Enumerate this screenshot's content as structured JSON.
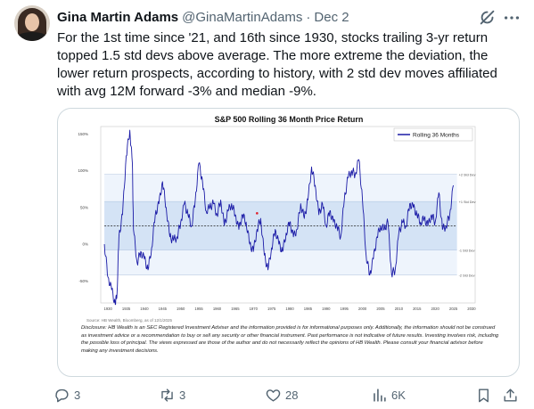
{
  "author": {
    "name": "Gina Martin Adams",
    "handle": "@GinaMartinAdams",
    "separator": "·",
    "date": "Dec 2"
  },
  "tweet_text": "For the 1st time since '21, and 16th since 1930, stocks trailing 3-yr return topped 1.5 std devs above average. The more extreme the deviation, the lower return prospects, according to history, with 2 std dev moves affiliated with avg 12M forward -3% and median -9%.",
  "media": {
    "chart_data": {
      "type": "line",
      "title": "S&P 500 Rolling 36 Month Price Return",
      "legend": [
        "Rolling 36 Months"
      ],
      "legend_position": "top-right",
      "y_ticks": [
        "150%",
        "100%",
        "50%",
        "0%",
        "-50%"
      ],
      "x_ticks": [
        "1930",
        "1935",
        "1940",
        "1945",
        "1950",
        "1955",
        "1960",
        "1965",
        "1970",
        "1975",
        "1980",
        "1985",
        "1990",
        "1995",
        "2000",
        "2005",
        "2010",
        "2015",
        "2020",
        "2025",
        "2030"
      ],
      "ylim": [
        -80,
        160
      ],
      "xlim": [
        1928,
        2031
      ],
      "band_labels": [
        "+2 Std Dev",
        "+1 Std Dev",
        "-1 Std Dev",
        "-2 Std Dev"
      ],
      "bands": {
        "plus2": 95,
        "plus1": 58,
        "mean": 25,
        "minus1": -8,
        "minus2": -42
      },
      "series": [
        {
          "name": "Rolling 36 Months",
          "x": [
            1929,
            1930,
            1931,
            1932,
            1932.5,
            1933,
            1934,
            1935,
            1936,
            1936.7,
            1937,
            1938,
            1939,
            1940,
            1941,
            1942,
            1943,
            1944,
            1945,
            1946,
            1947,
            1948,
            1949,
            1950,
            1951,
            1952,
            1953,
            1954,
            1955,
            1956,
            1957,
            1958,
            1959,
            1960,
            1961,
            1962,
            1963,
            1964,
            1965,
            1966,
            1967,
            1968,
            1969,
            1970,
            1971,
            1972,
            1973,
            1974,
            1975,
            1976,
            1977,
            1978,
            1979,
            1980,
            1981,
            1982,
            1983,
            1984,
            1985,
            1986,
            1987,
            1988,
            1989,
            1990,
            1991,
            1992,
            1993,
            1994,
            1995,
            1996,
            1997,
            1998,
            1999,
            2000,
            2001,
            2002,
            2003,
            2004,
            2005,
            2006,
            2007,
            2008,
            2009,
            2010,
            2011,
            2012,
            2013,
            2014,
            2015,
            2016,
            2017,
            2018,
            2019,
            2020,
            2021,
            2022,
            2023,
            2024,
            2025
          ],
          "y": [
            0,
            -45,
            -62,
            -82,
            -65,
            10,
            40,
            120,
            155,
            110,
            20,
            -25,
            -10,
            -20,
            -35,
            -5,
            40,
            55,
            85,
            50,
            10,
            5,
            10,
            30,
            55,
            40,
            25,
            60,
            110,
            85,
            45,
            50,
            55,
            40,
            60,
            25,
            45,
            55,
            40,
            20,
            40,
            30,
            0,
            -10,
            20,
            35,
            -15,
            -35,
            -5,
            20,
            0,
            -10,
            15,
            30,
            10,
            20,
            55,
            35,
            60,
            105,
            80,
            40,
            55,
            25,
            45,
            30,
            25,
            10,
            60,
            90,
            100,
            95,
            115,
            60,
            -15,
            -42,
            -20,
            10,
            25,
            20,
            30,
            -40,
            -35,
            15,
            30,
            25,
            55,
            50,
            40,
            30,
            35,
            25,
            40,
            30,
            70,
            20,
            25,
            40,
            80
          ]
        }
      ],
      "marker": {
        "x": 1971,
        "y": 42
      },
      "footnote": "Source: HB Wealth, Bloomberg, as of 12/1/2025",
      "disclosure": "Disclosure: HB Wealth is an SEC Registered Investment Adviser and the information provided is for informational purposes only. Additionally, the information should not be construed as investment advice or a recommendation to buy or sell any security or other financial instrument. Past performance is not indicative of future results. Investing involves risk, including the possible loss of principal. The views expressed are those of the author and do not necessarily reflect the opinions of HB Wealth. Please consult your financial advisor before making any investment decisions."
    }
  },
  "actions": {
    "replies": "3",
    "reposts": "3",
    "likes": "28",
    "views": "6K"
  },
  "colors": {
    "line": "#1a1aa6",
    "band_outer": "#eef4fc",
    "band_inner": "#d4e3f5",
    "marker": "#e0202a",
    "muted": "#536471"
  },
  "icons": [
    "grok-icon",
    "more-icon",
    "reply-icon",
    "repost-icon",
    "like-icon",
    "views-icon",
    "bookmark-icon",
    "share-icon"
  ]
}
